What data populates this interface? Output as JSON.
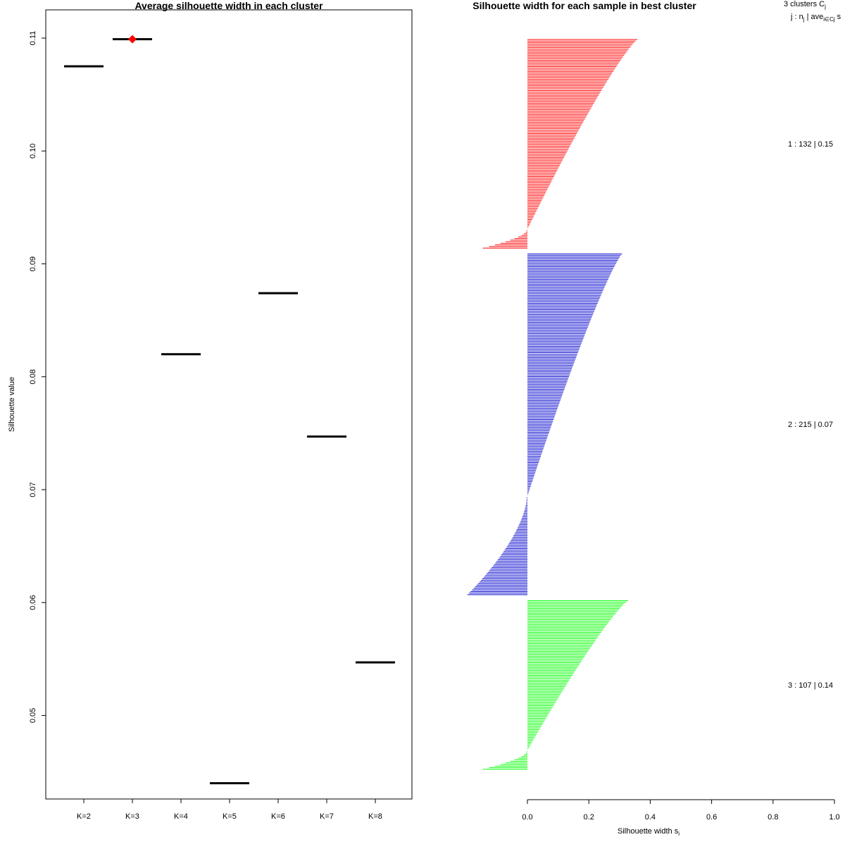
{
  "chart_data": [
    {
      "type": "line",
      "title": "Average silhouette width in each cluster",
      "xlabel": "",
      "ylabel": "Silhouette value",
      "categories": [
        "K=2",
        "K=3",
        "K=4",
        "K=5",
        "K=6",
        "K=7",
        "K=8"
      ],
      "values": [
        0.1075,
        0.1099,
        0.082,
        0.044,
        0.0874,
        0.0747,
        0.0547
      ],
      "best": {
        "category": "K=3",
        "value": 0.1099,
        "color": "#ff0000"
      },
      "yticks": [
        0.05,
        0.06,
        0.07,
        0.08,
        0.09,
        0.1,
        0.11
      ],
      "ytick_labels": [
        "0.05",
        "0.06",
        "0.07",
        "0.08",
        "0.09",
        "0.10",
        "0.11"
      ],
      "ylim": [
        0.0426,
        0.1125
      ]
    },
    {
      "type": "bar",
      "orientation": "horizontal",
      "title": "Silhouette width for each sample in best cluster",
      "xlabel": "Silhouette width s",
      "xlabel_sub": "i",
      "xlim": [
        0.0,
        1.0
      ],
      "xticks": [
        0.0,
        0.2,
        0.4,
        0.6,
        0.8,
        1.0
      ],
      "xtick_labels": [
        "0.0",
        "0.2",
        "0.4",
        "0.6",
        "0.8",
        "1.0"
      ],
      "legend": {
        "header_line1": "3  clusters  C",
        "header_line1_sub": "j",
        "header_line2": "j :  n",
        "header_line2_sub": "j",
        "header_line2_rest": " | ave",
        "header_line2_sub2": "i∈Cj",
        "header_line2_tail": "  s"
      },
      "clusters": [
        {
          "id": 1,
          "label": "1 :   132  |  0.15",
          "n": 132,
          "avg": 0.15,
          "color": "#ff0000",
          "max": 0.355,
          "min": -0.145,
          "neg_count": 12
        },
        {
          "id": 2,
          "label": "2 :   215  |  0.07",
          "n": 215,
          "avg": 0.07,
          "color": "#0000cd",
          "max": 0.305,
          "min": -0.195,
          "neg_count": 62
        },
        {
          "id": 3,
          "label": "3 :   107  |  0.14",
          "n": 107,
          "avg": 0.14,
          "color": "#00ff00",
          "max": 0.325,
          "min": -0.145,
          "neg_count": 12
        }
      ]
    }
  ]
}
